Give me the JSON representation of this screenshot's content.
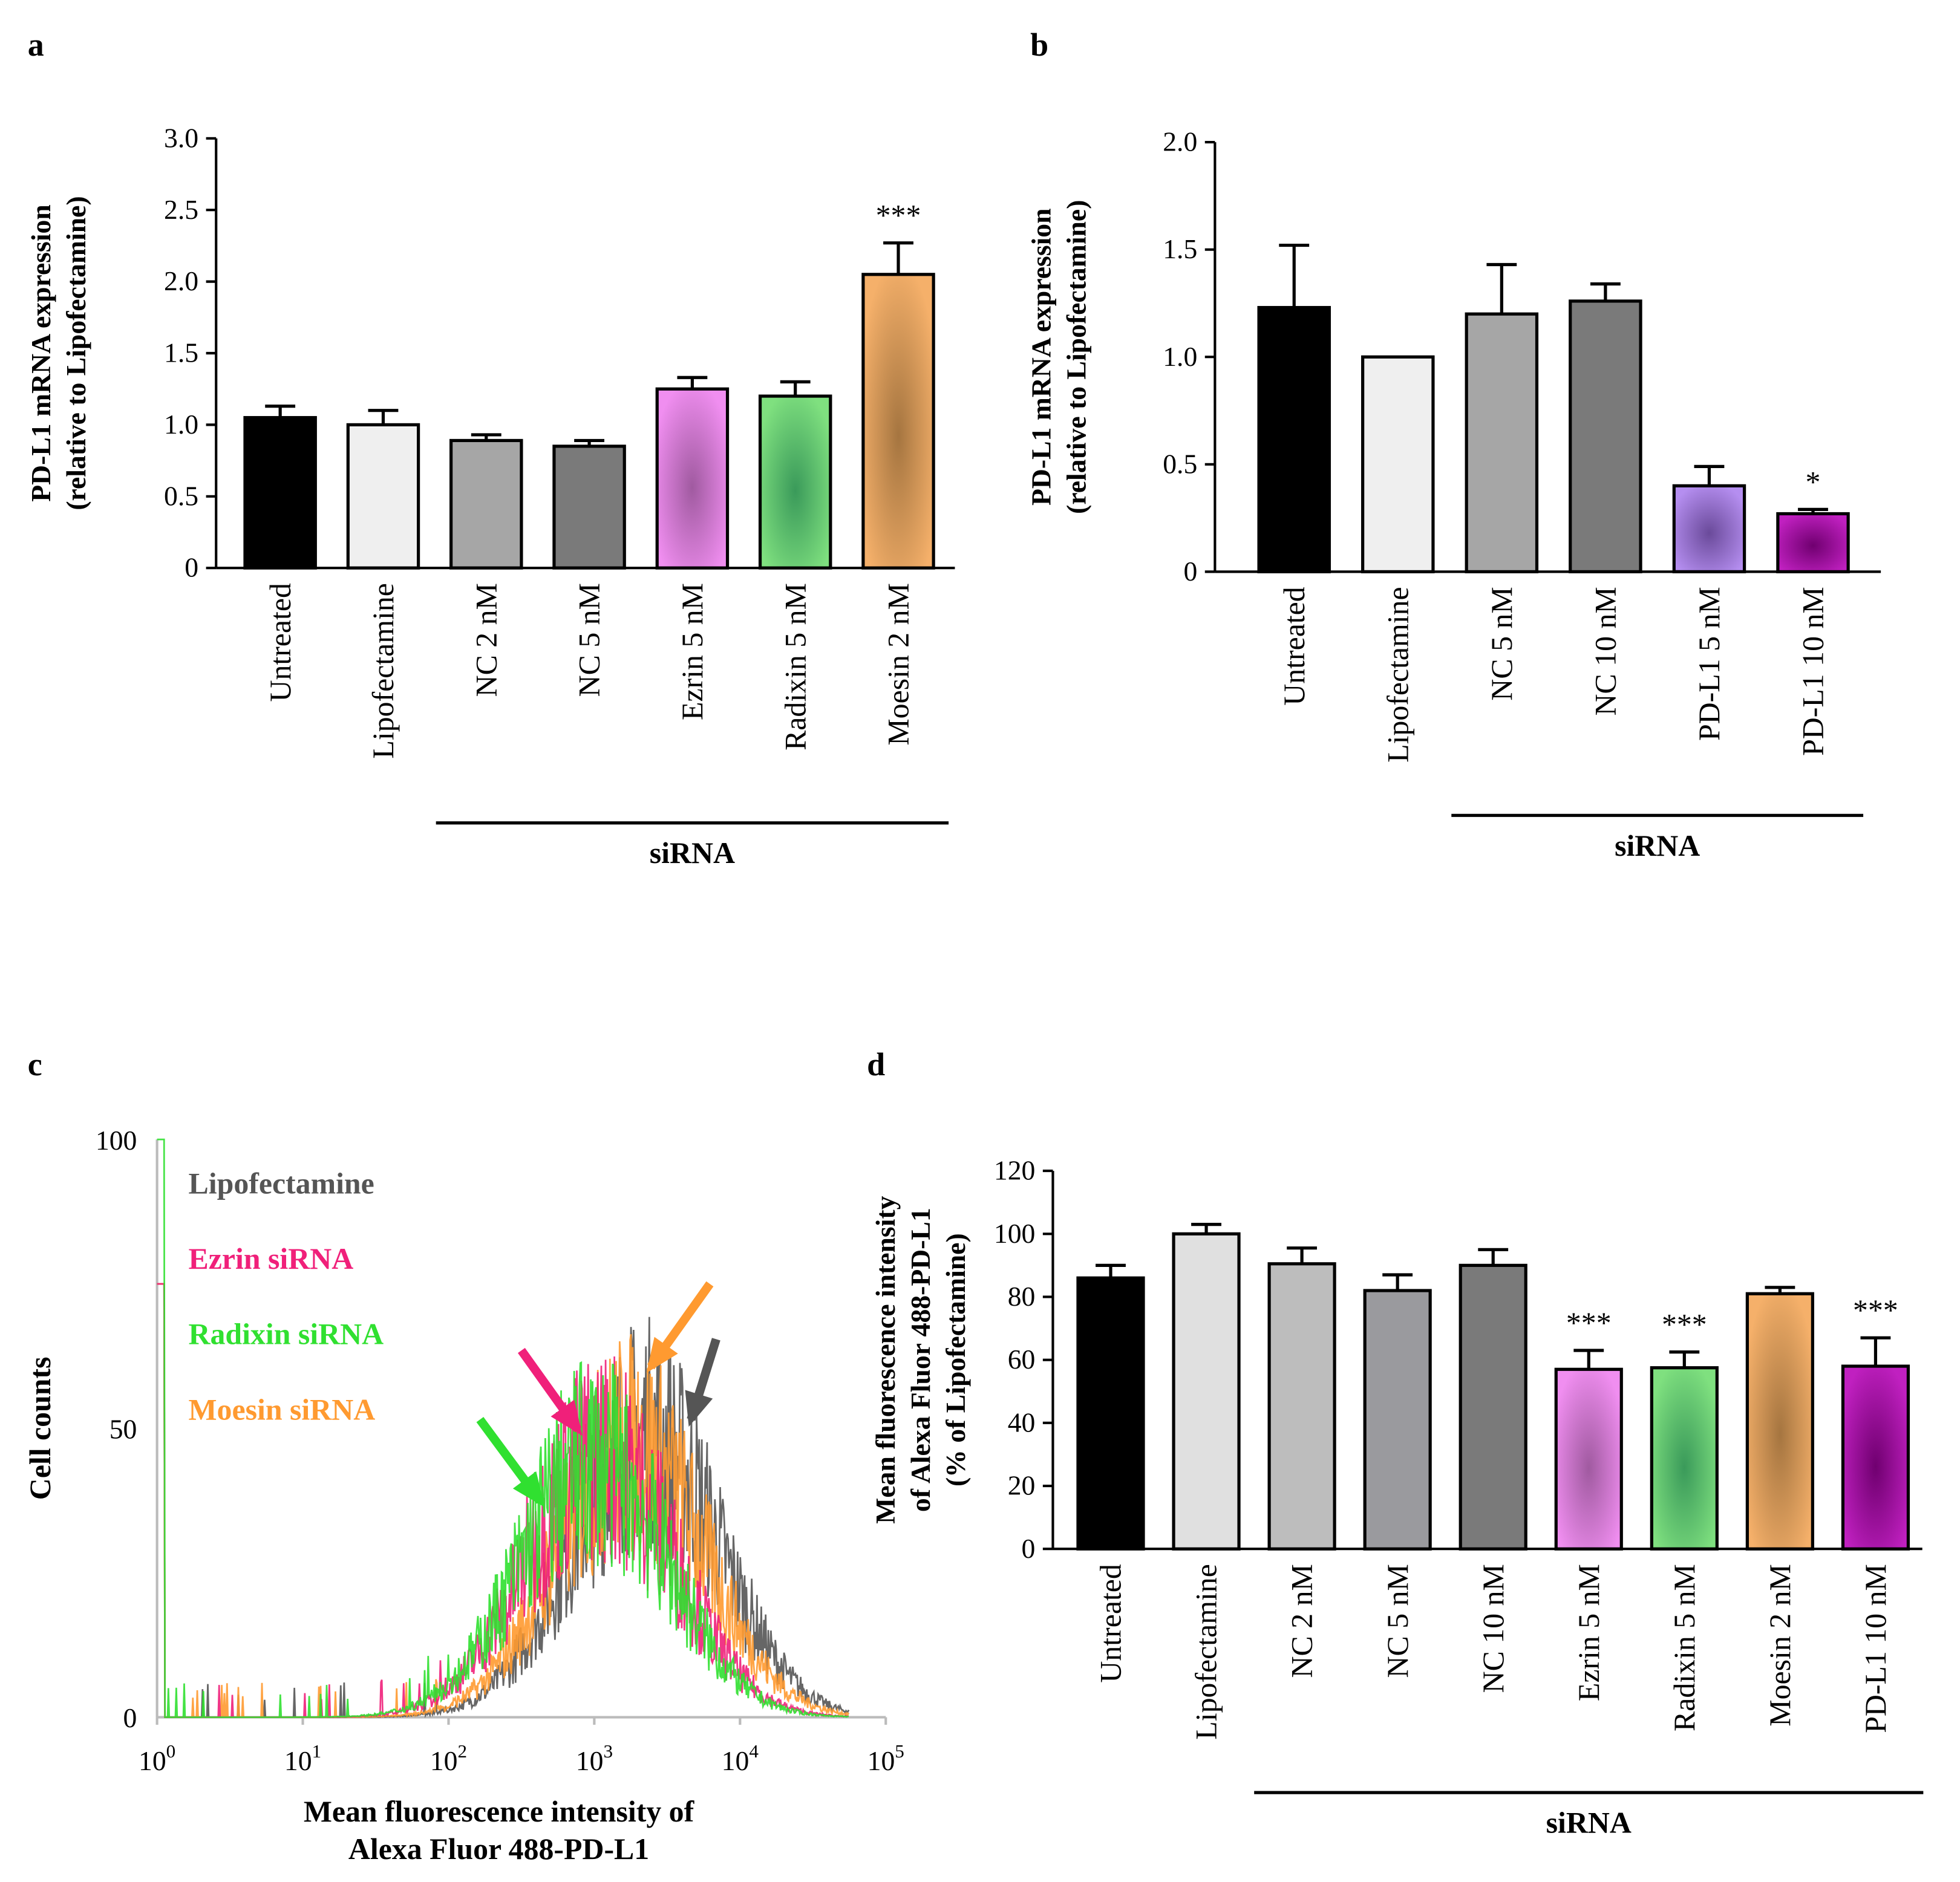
{
  "chart_data": [
    {
      "panel": "a",
      "type": "bar",
      "ylabel": [
        "PD-L1 mRNA expression",
        "(relative to Lipofectamine)"
      ],
      "ylim": [
        0,
        3.0
      ],
      "yticks": [
        "0",
        "0.5",
        "1.0",
        "1.5",
        "2.0",
        "2.5",
        "3.0"
      ],
      "categories": [
        "Untreated",
        "Lipofectamine",
        "NC  2 nM",
        "NC 5 nM",
        "Ezrin 5 nM",
        "Radixin 5 nM",
        "Moesin 2 nM"
      ],
      "values": [
        1.05,
        1.0,
        0.89,
        0.85,
        1.25,
        1.2,
        2.05
      ],
      "errors": [
        0.08,
        0.1,
        0.04,
        0.04,
        0.08,
        0.1,
        0.22
      ],
      "colors": [
        "#000000",
        "#efefef",
        "#a6a6a6",
        "#7a7a7a",
        "#f08ef0",
        "#7fe07f",
        "#f5b06a"
      ],
      "gradients": [
        null,
        null,
        null,
        null,
        "#a05aa0",
        "#3a9a5a",
        "#a57540"
      ],
      "annotations": [
        "",
        "",
        "",
        "",
        "",
        "",
        "***"
      ],
      "group_label": "siRNA",
      "group_range": [
        2,
        6
      ]
    },
    {
      "panel": "b",
      "type": "bar",
      "ylabel": [
        "PD-L1 mRNA expression",
        "(relative to Lipofectamine)"
      ],
      "ylim": [
        0,
        2.0
      ],
      "yticks": [
        "0",
        "0.5",
        "1.0",
        "1.5",
        "2.0"
      ],
      "categories": [
        "Untreated",
        "Lipofectamine",
        "NC 5 nM",
        "NC 10 nM",
        "PD-L1 5 nM",
        "PD-L1 10 nM"
      ],
      "values": [
        1.23,
        1.0,
        1.2,
        1.26,
        0.4,
        0.27
      ],
      "errors": [
        0.29,
        0,
        0.23,
        0.08,
        0.09,
        0.02
      ],
      "colors": [
        "#000000",
        "#efefef",
        "#a6a6a6",
        "#7a7a7a",
        "#b58ef0",
        "#c020c0"
      ],
      "gradients": [
        null,
        null,
        null,
        null,
        "#6a4a9a",
        "#700070"
      ],
      "annotations": [
        "",
        "",
        "",
        "",
        "",
        "*"
      ],
      "group_label": "siRNA",
      "group_range": [
        2,
        5
      ]
    },
    {
      "panel": "c",
      "type": "line",
      "xlabel": [
        "Mean fluorescence intensity of",
        "Alexa Fluor 488-PD-L1"
      ],
      "ylabel": "Cell counts",
      "xscale": "log",
      "xlim": [
        1,
        100000
      ],
      "ylim": [
        0,
        100
      ],
      "xticks": [
        {
          "base": "10",
          "exp": "0"
        },
        {
          "base": "10",
          "exp": "1"
        },
        {
          "base": "10",
          "exp": "2"
        },
        {
          "base": "10",
          "exp": "3"
        },
        {
          "base": "10",
          "exp": "4"
        },
        {
          "base": "10",
          "exp": "5"
        }
      ],
      "yticks": [
        "0",
        "50",
        "100"
      ],
      "legend_placement": "top-left",
      "series": [
        {
          "name": "Lipofectamine",
          "color": "#555555",
          "peak_log10": 3.35,
          "peak_count": 52,
          "width_log10": 0.5
        },
        {
          "name": "Ezrin siRNA",
          "color": "#f0207a",
          "peak_log10": 3.05,
          "peak_count": 48,
          "width_log10": 0.5
        },
        {
          "name": "Radixin siRNA",
          "color": "#30e030",
          "peak_log10": 3.0,
          "peak_count": 47,
          "width_log10": 0.5
        },
        {
          "name": "Moesin siRNA",
          "color": "#ff9a30",
          "peak_log10": 3.25,
          "peak_count": 50,
          "width_log10": 0.5
        }
      ]
    },
    {
      "panel": "d",
      "type": "bar",
      "ylabel": [
        "Mean fluorescence intensity",
        "of Alexa Fluor 488-PD-L1",
        "(% of Lipofectamine)"
      ],
      "ylim": [
        0,
        120
      ],
      "yticks": [
        "0",
        "20",
        "40",
        "60",
        "80",
        "100",
        "120"
      ],
      "categories": [
        "Untreated",
        "Lipofectamine",
        "NC  2 nM",
        "NC 5 nM",
        "NC 10 nM",
        "Ezrin 5 nM",
        "Radixin 5 nM",
        "Moesin 2 nM",
        "PD-L1 10 nM"
      ],
      "values": [
        86,
        100,
        90.5,
        82,
        90,
        57,
        57.5,
        81,
        58
      ],
      "errors": [
        4,
        3,
        5,
        5,
        5,
        6,
        5,
        2,
        9
      ],
      "colors": [
        "#000000",
        "#e0e0e0",
        "#bdbdbd",
        "#9a9a9e",
        "#7a7a7a",
        "#f08ef0",
        "#7fe07f",
        "#f5b06a",
        "#c020c0"
      ],
      "gradients": [
        null,
        null,
        null,
        null,
        null,
        "#a05aa0",
        "#3a9a5a",
        "#a57540",
        "#700070"
      ],
      "annotations": [
        "",
        "",
        "",
        "",
        "",
        "***",
        "***",
        "",
        "***"
      ],
      "group_label": "siRNA",
      "group_range": [
        2,
        8
      ]
    }
  ]
}
